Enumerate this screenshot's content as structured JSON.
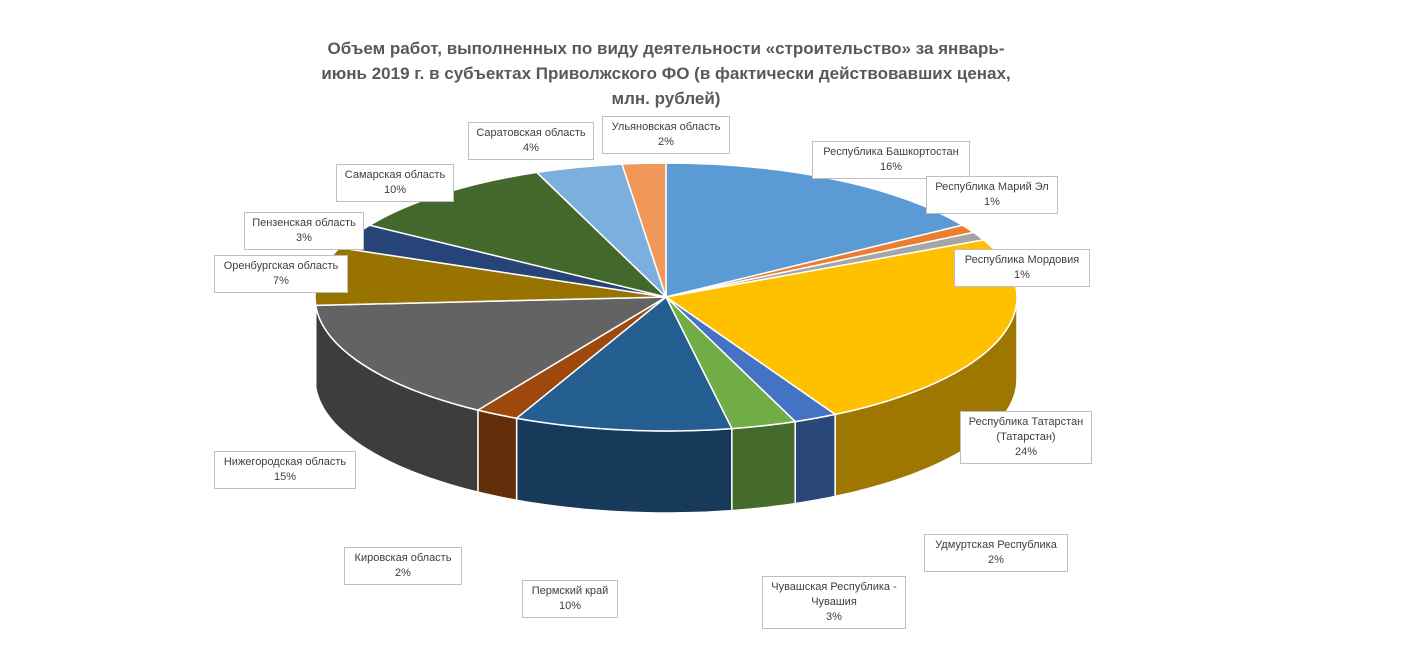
{
  "chart_data": {
    "type": "pie",
    "title_lines": [
      "Объем работ, выполненных по виду деятельности «строительство» за январь-",
      "июнь 2019 г. в субъектах Приволжского ФО (в фактически действовавших ценах,",
      "млн. рублей)"
    ],
    "slices": [
      {
        "label_lines": [
          "Республика Башкортостан"
        ],
        "pct": "16%",
        "value": 16,
        "color": "#5b9bd5"
      },
      {
        "label_lines": [
          "Республика Марий Эл"
        ],
        "pct": "1%",
        "value": 1,
        "color": "#ed7d31"
      },
      {
        "label_lines": [
          "Республика Мордовия"
        ],
        "pct": "1%",
        "value": 1,
        "color": "#a5a5a5"
      },
      {
        "label_lines": [
          "Республика Татарстан",
          "(Татарстан)"
        ],
        "pct": "24%",
        "value": 24,
        "color": "#ffc000"
      },
      {
        "label_lines": [
          "Удмуртская Республика"
        ],
        "pct": "2%",
        "value": 2,
        "color": "#4472c4"
      },
      {
        "label_lines": [
          "Чувашская Республика -",
          "Чувашия"
        ],
        "pct": "3%",
        "value": 3,
        "color": "#70ad47"
      },
      {
        "label_lines": [
          "Пермский край"
        ],
        "pct": "10%",
        "value": 10,
        "color": "#255e91"
      },
      {
        "label_lines": [
          "Кировская область"
        ],
        "pct": "2%",
        "value": 2,
        "color": "#9e480e"
      },
      {
        "label_lines": [
          "Нижегородская область"
        ],
        "pct": "15%",
        "value": 15,
        "color": "#636363"
      },
      {
        "label_lines": [
          "Оренбургская область"
        ],
        "pct": "7%",
        "value": 7,
        "color": "#997300"
      },
      {
        "label_lines": [
          "Пензенская область"
        ],
        "pct": "3%",
        "value": 3,
        "color": "#264478"
      },
      {
        "label_lines": [
          "Самарская область"
        ],
        "pct": "10%",
        "value": 10,
        "color": "#43682b"
      },
      {
        "label_lines": [
          "Саратовская область"
        ],
        "pct": "4%",
        "value": 4,
        "color": "#7cafdd"
      },
      {
        "label_lines": [
          "Ульяновская область"
        ],
        "pct": "2%",
        "value": 2,
        "color": "#f1975a"
      }
    ]
  }
}
